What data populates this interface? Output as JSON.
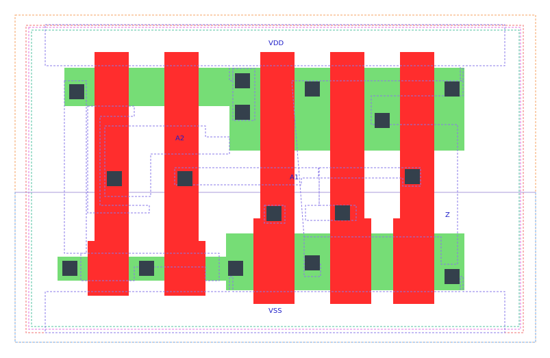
{
  "labels": {
    "vdd": "VDD",
    "vss": "VSS",
    "a2": "A2",
    "a1": "A1",
    "z": "Z"
  },
  "colors": {
    "diffusion": "#76dd76",
    "poly": "#ff2d2d",
    "contact": "#34404c",
    "label": "#1c1cc8",
    "metal_outline": "#8a78e8",
    "boundary_orange": "#f5a060",
    "boundary_red": "#f07070",
    "boundary_magenta": "#e070e0",
    "boundary_teal": "#50c0a0",
    "boundary_blue": "#70a8e8",
    "divider": "#a898d8"
  }
}
